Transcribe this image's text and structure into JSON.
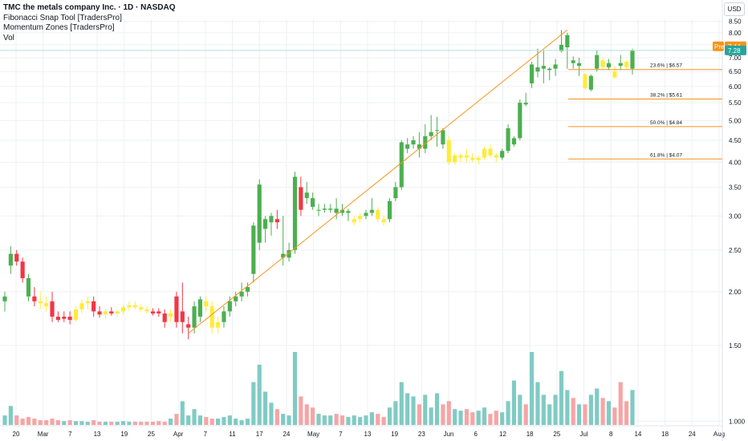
{
  "legend": {
    "title": "TMC the metals company Inc. · 1D · NASDAQ",
    "indicators": [
      "Fibonacci Snap Tool [TradersPro]",
      "Momentum Zones [TradersPro]",
      "Vol"
    ]
  },
  "currency": "USD",
  "badges": {
    "pre_label": "Pre",
    "pre_value": "7.44",
    "last_value": "7.28",
    "pre_color": "#f7931a",
    "last_color": "#26a69a"
  },
  "colors": {
    "up": "#4caf50",
    "down": "#f23645",
    "neutral": "#ffeb3b",
    "vol_up": "#80cbc4",
    "vol_down": "#f6a5a5",
    "fib": "#f7931a",
    "trendline": "#f7931a",
    "grid": "#eef0f3"
  },
  "chart_data": {
    "type": "candlestick",
    "title": "TMC the metals company Inc. · 1D · NASDAQ",
    "y_axis": {
      "ticks": [
        "8.50",
        "8.00",
        "7.50",
        "7.00",
        "6.50",
        "6.00",
        "5.50",
        "5.00",
        "4.50",
        "4.00",
        "3.50",
        "3.00",
        "2.50",
        "2.00",
        "1.50",
        "1.000"
      ],
      "scale": "log",
      "range": [
        0.98,
        8.6
      ]
    },
    "x_axis": {
      "ticks": [
        "20",
        "Mar",
        "7",
        "13",
        "19",
        "25",
        "Apr",
        "7",
        "11",
        "17",
        "24",
        "May",
        "7",
        "13",
        "19",
        "23",
        "Jun",
        "6",
        "12",
        "18",
        "25",
        "Jul",
        "8",
        "14",
        "18",
        "24",
        "Aug"
      ]
    },
    "fib_levels": [
      {
        "label": "23.6% | $6.57",
        "value": 6.57
      },
      {
        "label": "38.2% | $5.61",
        "value": 5.61
      },
      {
        "label": "50.0% | $4.84",
        "value": 4.84
      },
      {
        "label": "61.8% | $4.07",
        "value": 4.07
      }
    ],
    "trendline": {
      "from": 1.6,
      "to": 8.12
    },
    "price_line": 7.28,
    "candles": [
      {
        "o": 1.9,
        "h": 2.0,
        "l": 1.8,
        "c": 1.95,
        "z": "up",
        "v": 0.3
      },
      {
        "o": 2.3,
        "h": 2.55,
        "l": 2.2,
        "c": 2.45,
        "z": "up",
        "v": 0.6
      },
      {
        "o": 2.45,
        "h": 2.5,
        "l": 2.3,
        "c": 2.35,
        "z": "down",
        "v": 0.3
      },
      {
        "o": 2.35,
        "h": 2.4,
        "l": 2.1,
        "c": 2.15,
        "z": "down",
        "v": 0.2
      },
      {
        "o": 2.15,
        "h": 2.2,
        "l": 1.9,
        "c": 1.95,
        "z": "up",
        "v": 0.25
      },
      {
        "o": 1.95,
        "h": 2.05,
        "l": 1.85,
        "c": 1.9,
        "z": "down",
        "v": 0.2
      },
      {
        "o": 1.9,
        "h": 2.0,
        "l": 1.82,
        "c": 1.88,
        "z": "neutral",
        "v": 0.15
      },
      {
        "o": 1.88,
        "h": 1.95,
        "l": 1.8,
        "c": 1.85,
        "z": "neutral",
        "v": 0.15
      },
      {
        "o": 1.9,
        "h": 2.0,
        "l": 1.7,
        "c": 1.75,
        "z": "down",
        "v": 0.2
      },
      {
        "o": 1.75,
        "h": 1.8,
        "l": 1.7,
        "c": 1.72,
        "z": "down",
        "v": 0.15
      },
      {
        "o": 1.73,
        "h": 1.8,
        "l": 1.7,
        "c": 1.75,
        "z": "down",
        "v": 0.12
      },
      {
        "o": 1.75,
        "h": 1.8,
        "l": 1.68,
        "c": 1.72,
        "z": "down",
        "v": 0.15
      },
      {
        "o": 1.72,
        "h": 1.85,
        "l": 1.7,
        "c": 1.82,
        "z": "neutral",
        "v": 0.12
      },
      {
        "o": 1.82,
        "h": 1.92,
        "l": 1.78,
        "c": 1.88,
        "z": "neutral",
        "v": 0.12
      },
      {
        "o": 1.88,
        "h": 1.95,
        "l": 1.82,
        "c": 1.9,
        "z": "neutral",
        "v": 0.1
      },
      {
        "o": 1.9,
        "h": 1.95,
        "l": 1.75,
        "c": 1.8,
        "z": "down",
        "v": 0.15
      },
      {
        "o": 1.8,
        "h": 1.85,
        "l": 1.74,
        "c": 1.77,
        "z": "down",
        "v": 0.1
      },
      {
        "o": 1.77,
        "h": 1.82,
        "l": 1.73,
        "c": 1.8,
        "z": "neutral",
        "v": 0.1
      },
      {
        "o": 1.8,
        "h": 1.84,
        "l": 1.76,
        "c": 1.78,
        "z": "down",
        "v": 0.1
      },
      {
        "o": 1.78,
        "h": 1.82,
        "l": 1.75,
        "c": 1.8,
        "z": "neutral",
        "v": 0.1
      },
      {
        "o": 1.8,
        "h": 1.86,
        "l": 1.77,
        "c": 1.84,
        "z": "neutral",
        "v": 0.12
      },
      {
        "o": 1.84,
        "h": 1.9,
        "l": 1.8,
        "c": 1.86,
        "z": "neutral",
        "v": 0.1
      },
      {
        "o": 1.86,
        "h": 1.9,
        "l": 1.82,
        "c": 1.84,
        "z": "neutral",
        "v": 0.1
      },
      {
        "o": 1.84,
        "h": 1.87,
        "l": 1.8,
        "c": 1.82,
        "z": "neutral",
        "v": 0.1
      },
      {
        "o": 1.82,
        "h": 1.85,
        "l": 1.78,
        "c": 1.8,
        "z": "neutral",
        "v": 0.1
      },
      {
        "o": 1.8,
        "h": 1.83,
        "l": 1.76,
        "c": 1.78,
        "z": "down",
        "v": 0.1
      },
      {
        "o": 1.8,
        "h": 1.83,
        "l": 1.75,
        "c": 1.78,
        "z": "down",
        "v": 0.12
      },
      {
        "o": 1.78,
        "h": 1.82,
        "l": 1.65,
        "c": 1.7,
        "z": "down",
        "v": 0.1
      },
      {
        "o": 1.75,
        "h": 1.82,
        "l": 1.7,
        "c": 1.78,
        "z": "neutral",
        "v": 0.2
      },
      {
        "o": 1.95,
        "h": 2.0,
        "l": 1.65,
        "c": 1.7,
        "z": "down",
        "v": 0.35
      },
      {
        "o": 1.7,
        "h": 2.1,
        "l": 1.6,
        "c": 1.8,
        "z": "down",
        "v": 0.75
      },
      {
        "o": 1.65,
        "h": 1.75,
        "l": 1.55,
        "c": 1.68,
        "z": "down",
        "v": 0.3
      },
      {
        "o": 1.65,
        "h": 1.9,
        "l": 1.6,
        "c": 1.85,
        "z": "up",
        "v": 0.5
      },
      {
        "o": 1.75,
        "h": 1.95,
        "l": 1.7,
        "c": 1.92,
        "z": "up",
        "v": 0.3
      },
      {
        "o": 1.9,
        "h": 1.95,
        "l": 1.8,
        "c": 1.85,
        "z": "neutral",
        "v": 0.25
      },
      {
        "o": 1.85,
        "h": 1.9,
        "l": 1.6,
        "c": 1.65,
        "z": "neutral",
        "v": 0.2
      },
      {
        "o": 1.65,
        "h": 1.75,
        "l": 1.6,
        "c": 1.7,
        "z": "neutral",
        "v": 0.2
      },
      {
        "o": 1.7,
        "h": 1.85,
        "l": 1.65,
        "c": 1.8,
        "z": "up",
        "v": 0.25
      },
      {
        "o": 1.8,
        "h": 1.95,
        "l": 1.75,
        "c": 1.9,
        "z": "up",
        "v": 0.3
      },
      {
        "o": 1.9,
        "h": 2.0,
        "l": 1.85,
        "c": 1.95,
        "z": "up",
        "v": 0.2
      },
      {
        "o": 1.95,
        "h": 2.1,
        "l": 1.9,
        "c": 2.0,
        "z": "up",
        "v": 0.15
      },
      {
        "o": 2.0,
        "h": 2.1,
        "l": 1.95,
        "c": 2.05,
        "z": "up",
        "v": 0.2
      },
      {
        "o": 2.2,
        "h": 2.9,
        "l": 2.1,
        "c": 2.85,
        "z": "up",
        "v": 1.35
      },
      {
        "o": 2.6,
        "h": 3.65,
        "l": 2.5,
        "c": 3.55,
        "z": "up",
        "v": 1.9
      },
      {
        "o": 2.8,
        "h": 3.0,
        "l": 2.6,
        "c": 2.95,
        "z": "up",
        "v": 1.05
      },
      {
        "o": 2.9,
        "h": 3.05,
        "l": 2.7,
        "c": 3.0,
        "z": "up",
        "v": 0.7
      },
      {
        "o": 2.95,
        "h": 3.1,
        "l": 2.8,
        "c": 2.9,
        "z": "down",
        "v": 0.5
      },
      {
        "o": 2.4,
        "h": 3.0,
        "l": 2.3,
        "c": 2.45,
        "z": "up",
        "v": 0.35
      },
      {
        "o": 2.4,
        "h": 2.6,
        "l": 2.35,
        "c": 2.5,
        "z": "up",
        "v": 0.3
      },
      {
        "o": 2.5,
        "h": 3.8,
        "l": 2.45,
        "c": 3.7,
        "z": "up",
        "v": 2.3
      },
      {
        "o": 3.5,
        "h": 3.7,
        "l": 3.0,
        "c": 3.1,
        "z": "down",
        "v": 0.9
      },
      {
        "o": 3.4,
        "h": 3.6,
        "l": 3.2,
        "c": 3.3,
        "z": "up",
        "v": 0.65
      },
      {
        "o": 3.3,
        "h": 3.4,
        "l": 3.1,
        "c": 3.15,
        "z": "up",
        "v": 0.55
      },
      {
        "o": 3.1,
        "h": 3.2,
        "l": 3.0,
        "c": 3.1,
        "z": "up",
        "v": 0.35
      },
      {
        "o": 3.1,
        "h": 3.2,
        "l": 3.05,
        "c": 3.12,
        "z": "up",
        "v": 0.3
      },
      {
        "o": 3.1,
        "h": 3.2,
        "l": 3.05,
        "c": 3.12,
        "z": "up",
        "v": 0.3
      },
      {
        "o": 3.12,
        "h": 3.3,
        "l": 2.95,
        "c": 3.05,
        "z": "up",
        "v": 0.35
      },
      {
        "o": 3.1,
        "h": 3.2,
        "l": 3.0,
        "c": 3.05,
        "z": "up",
        "v": 0.3
      },
      {
        "o": 3.05,
        "h": 3.12,
        "l": 2.92,
        "c": 3.08,
        "z": "up",
        "v": 0.25
      },
      {
        "o": 2.9,
        "h": 3.0,
        "l": 2.85,
        "c": 2.95,
        "z": "neutral",
        "v": 0.3
      },
      {
        "o": 2.95,
        "h": 3.05,
        "l": 2.9,
        "c": 3.0,
        "z": "neutral",
        "v": 0.25
      },
      {
        "o": 3.0,
        "h": 3.1,
        "l": 2.95,
        "c": 3.05,
        "z": "up",
        "v": 0.3
      },
      {
        "o": 3.05,
        "h": 3.3,
        "l": 3.0,
        "c": 3.1,
        "z": "up",
        "v": 0.4
      },
      {
        "o": 3.1,
        "h": 3.15,
        "l": 2.9,
        "c": 2.95,
        "z": "neutral",
        "v": 0.35
      },
      {
        "o": 2.95,
        "h": 3.0,
        "l": 2.85,
        "c": 2.9,
        "z": "neutral",
        "v": 0.25
      },
      {
        "o": 2.95,
        "h": 3.3,
        "l": 2.9,
        "c": 3.25,
        "z": "up",
        "v": 0.55
      },
      {
        "o": 3.3,
        "h": 3.6,
        "l": 3.25,
        "c": 3.5,
        "z": "up",
        "v": 0.75
      },
      {
        "o": 3.5,
        "h": 4.5,
        "l": 3.45,
        "c": 4.45,
        "z": "up",
        "v": 1.35
      },
      {
        "o": 4.3,
        "h": 4.55,
        "l": 4.2,
        "c": 4.4,
        "z": "up",
        "v": 1.0
      },
      {
        "o": 4.4,
        "h": 4.6,
        "l": 4.3,
        "c": 4.5,
        "z": "up",
        "v": 0.9
      },
      {
        "o": 4.4,
        "h": 4.7,
        "l": 4.1,
        "c": 4.3,
        "z": "up",
        "v": 0.65
      },
      {
        "o": 4.3,
        "h": 4.9,
        "l": 4.2,
        "c": 4.6,
        "z": "up",
        "v": 0.95
      },
      {
        "o": 4.6,
        "h": 5.15,
        "l": 4.5,
        "c": 4.7,
        "z": "up",
        "v": 0.55
      },
      {
        "o": 4.75,
        "h": 5.1,
        "l": 4.35,
        "c": 4.75,
        "z": "up",
        "v": 1.0
      },
      {
        "o": 4.75,
        "h": 4.8,
        "l": 4.3,
        "c": 4.4,
        "z": "up",
        "v": 0.65
      },
      {
        "o": 4.5,
        "h": 4.6,
        "l": 3.95,
        "c": 4.0,
        "z": "neutral",
        "v": 0.75
      },
      {
        "o": 4.0,
        "h": 4.2,
        "l": 3.95,
        "c": 4.15,
        "z": "neutral",
        "v": 0.5
      },
      {
        "o": 4.1,
        "h": 4.2,
        "l": 4.0,
        "c": 4.15,
        "z": "neutral",
        "v": 0.45
      },
      {
        "o": 4.15,
        "h": 4.3,
        "l": 4.0,
        "c": 4.1,
        "z": "neutral",
        "v": 0.5
      },
      {
        "o": 4.1,
        "h": 4.2,
        "l": 4.0,
        "c": 4.05,
        "z": "neutral",
        "v": 0.4
      },
      {
        "o": 4.05,
        "h": 4.15,
        "l": 3.95,
        "c": 4.1,
        "z": "neutral",
        "v": 0.45
      },
      {
        "o": 4.1,
        "h": 4.35,
        "l": 4.05,
        "c": 4.3,
        "z": "neutral",
        "v": 0.55
      },
      {
        "o": 4.3,
        "h": 4.4,
        "l": 4.1,
        "c": 4.15,
        "z": "neutral",
        "v": 0.35
      },
      {
        "o": 4.15,
        "h": 4.2,
        "l": 4.0,
        "c": 4.1,
        "z": "neutral",
        "v": 0.45
      },
      {
        "o": 4.1,
        "h": 4.3,
        "l": 4.05,
        "c": 4.25,
        "z": "up",
        "v": 0.4
      },
      {
        "o": 4.25,
        "h": 4.9,
        "l": 4.2,
        "c": 4.8,
        "z": "up",
        "v": 0.75
      },
      {
        "o": 4.4,
        "h": 4.6,
        "l": 4.35,
        "c": 4.55,
        "z": "up",
        "v": 1.4
      },
      {
        "o": 4.55,
        "h": 5.6,
        "l": 4.5,
        "c": 5.5,
        "z": "up",
        "v": 0.95
      },
      {
        "o": 5.5,
        "h": 5.8,
        "l": 5.4,
        "c": 5.45,
        "z": "up",
        "v": 0.65
      },
      {
        "o": 6.1,
        "h": 6.85,
        "l": 5.95,
        "c": 6.75,
        "z": "up",
        "v": 2.3
      },
      {
        "o": 6.5,
        "h": 7.35,
        "l": 6.3,
        "c": 6.65,
        "z": "up",
        "v": 1.35
      },
      {
        "o": 6.6,
        "h": 7.3,
        "l": 6.1,
        "c": 6.7,
        "z": "up",
        "v": 0.95
      },
      {
        "o": 6.55,
        "h": 6.65,
        "l": 6.2,
        "c": 6.6,
        "z": "up",
        "v": 0.65
      },
      {
        "o": 6.6,
        "h": 6.95,
        "l": 6.35,
        "c": 6.75,
        "z": "up",
        "v": 0.95
      },
      {
        "o": 7.25,
        "h": 8.12,
        "l": 7.2,
        "c": 7.5,
        "z": "up",
        "v": 1.7
      },
      {
        "o": 7.4,
        "h": 8.0,
        "l": 6.6,
        "c": 7.9,
        "z": "up",
        "v": 1.1
      },
      {
        "o": 6.9,
        "h": 7.05,
        "l": 6.6,
        "c": 6.8,
        "z": "up",
        "v": 0.85
      },
      {
        "o": 6.7,
        "h": 7.0,
        "l": 6.35,
        "c": 6.8,
        "z": "up",
        "v": 0.65
      },
      {
        "o": 6.4,
        "h": 6.45,
        "l": 5.9,
        "c": 5.95,
        "z": "neutral",
        "v": 0.65
      },
      {
        "o": 5.9,
        "h": 6.4,
        "l": 5.85,
        "c": 6.35,
        "z": "up",
        "v": 0.95
      },
      {
        "o": 6.6,
        "h": 7.3,
        "l": 6.5,
        "c": 7.1,
        "z": "up",
        "v": 1.15
      },
      {
        "o": 6.9,
        "h": 7.0,
        "l": 6.6,
        "c": 6.65,
        "z": "neutral",
        "v": 0.85
      },
      {
        "o": 6.65,
        "h": 6.95,
        "l": 6.55,
        "c": 6.8,
        "z": "up",
        "v": 0.75
      },
      {
        "o": 6.5,
        "h": 6.7,
        "l": 6.25,
        "c": 6.3,
        "z": "neutral",
        "v": 0.55
      },
      {
        "o": 6.8,
        "h": 7.1,
        "l": 6.55,
        "c": 6.7,
        "z": "up",
        "v": 1.35
      },
      {
        "o": 6.85,
        "h": 6.9,
        "l": 6.6,
        "c": 6.65,
        "z": "neutral",
        "v": 0.75
      },
      {
        "o": 6.6,
        "h": 7.35,
        "l": 6.4,
        "c": 7.28,
        "z": "up",
        "v": 1.1
      }
    ]
  }
}
